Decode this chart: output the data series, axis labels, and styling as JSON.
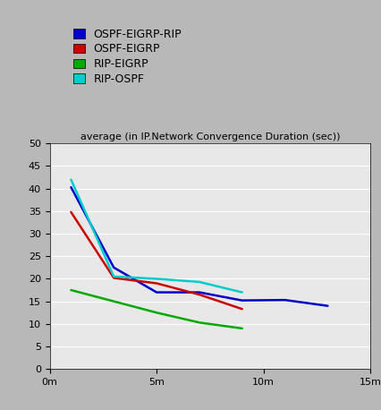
{
  "title": "average (in IP.Network Convergence Duration (sec))",
  "xlim": [
    0,
    15
  ],
  "ylim": [
    0,
    50
  ],
  "xticks": [
    0,
    5,
    10,
    15
  ],
  "xticklabels": [
    "0m",
    "5m",
    "10m",
    "15m"
  ],
  "yticks": [
    0,
    5,
    10,
    15,
    20,
    25,
    30,
    35,
    40,
    45,
    50
  ],
  "outer_bg": "#b8b8b8",
  "plot_bg": "#e8e8e8",
  "series": [
    {
      "label": "OSPF-EIGRP-RIP",
      "color": "#0000cc",
      "x": [
        1,
        3,
        5,
        7,
        9,
        11,
        13
      ],
      "y": [
        40.3,
        22.5,
        17.0,
        17.0,
        15.2,
        15.3,
        14.0
      ]
    },
    {
      "label": "OSPF-EIGRP",
      "color": "#cc0000",
      "x": [
        1,
        3,
        5,
        7,
        9
      ],
      "y": [
        34.8,
        20.2,
        19.0,
        16.5,
        13.3
      ]
    },
    {
      "label": "RIP-EIGRP",
      "color": "#00aa00",
      "x": [
        1,
        3,
        5,
        7,
        9
      ],
      "y": [
        17.5,
        15.0,
        12.5,
        10.3,
        9.0
      ]
    },
    {
      "label": "RIP-OSPF",
      "color": "#00cccc",
      "x": [
        1,
        3,
        5,
        7,
        9
      ],
      "y": [
        42.0,
        20.5,
        20.0,
        19.3,
        17.0
      ]
    }
  ],
  "legend_colors": [
    "#0000cc",
    "#cc0000",
    "#00aa00",
    "#00cccc"
  ],
  "legend_labels": [
    "OSPF-EIGRP-RIP",
    "OSPF-EIGRP",
    "RIP-EIGRP",
    "RIP-OSPF"
  ],
  "title_fontsize": 8,
  "tick_fontsize": 8,
  "legend_fontsize": 9
}
